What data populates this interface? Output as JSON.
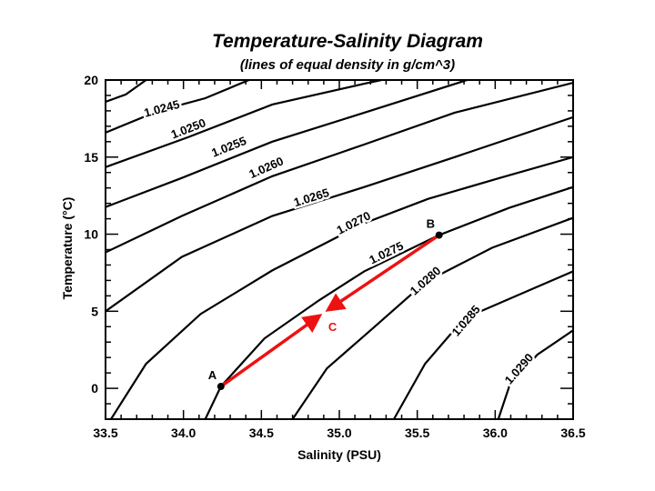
{
  "chart_data": {
    "type": "line",
    "title": "Temperature-Salinity Diagram",
    "subtitle": "(lines of equal density in g/cm^3)",
    "xlabel": "Salinity (PSU)",
    "ylabel": "Temperature (°C)",
    "xlim": [
      33.5,
      36.5
    ],
    "ylim": [
      -2,
      20
    ],
    "x_ticks": [
      "33.5",
      "34.0",
      "34.5",
      "35.0",
      "35.5",
      "36.0",
      "36.5"
    ],
    "x_tick_values": [
      33.5,
      34.0,
      34.5,
      35.0,
      35.5,
      36.0,
      36.5
    ],
    "x_minor_step": 0.1,
    "y_ticks": [
      "0",
      "5",
      "10",
      "15",
      "20"
    ],
    "y_tick_values": [
      0,
      5,
      10,
      15,
      20
    ],
    "y_minor_step": 1,
    "grid": false,
    "contours": [
      {
        "label": "",
        "level": 1.024,
        "S": [
          33.5,
          33.63,
          33.76
        ],
        "T": [
          18.59,
          19.06,
          20.0
        ]
      },
      {
        "label": "1.0245",
        "level": 1.0245,
        "label_at": [
          33.86,
          18.18
        ],
        "S": [
          33.5,
          33.84,
          34.14,
          34.42
        ],
        "T": [
          16.59,
          18.0,
          18.82,
          20.0
        ]
      },
      {
        "label": "1.0250",
        "level": 1.025,
        "label_at": [
          34.03,
          16.88
        ],
        "S": [
          33.5,
          34.03,
          34.57,
          35.16,
          35.27
        ],
        "T": [
          14.35,
          16.29,
          18.41,
          19.76,
          20.0
        ]
      },
      {
        "label": "1.0255",
        "level": 1.0255,
        "label_at": [
          34.29,
          15.7
        ],
        "S": [
          33.5,
          33.99,
          34.57,
          35.16,
          35.82
        ],
        "T": [
          11.76,
          13.65,
          16.0,
          17.88,
          20.0
        ]
      },
      {
        "label": "1.0260",
        "level": 1.026,
        "label_at": [
          34.53,
          14.35
        ],
        "S": [
          33.5,
          33.99,
          34.57,
          35.16,
          35.74,
          36.5
        ],
        "T": [
          8.82,
          11.18,
          13.76,
          15.82,
          17.88,
          19.82
        ]
      },
      {
        "label": "1.0265",
        "level": 1.0265,
        "label_at": [
          34.82,
          12.41
        ],
        "S": [
          33.5,
          33.99,
          34.57,
          35.16,
          35.74,
          36.5
        ],
        "T": [
          5.0,
          8.53,
          11.18,
          13.06,
          15.0,
          17.59
        ]
      },
      {
        "label": "1.0270",
        "level": 1.027,
        "label_at": [
          35.09,
          10.76
        ],
        "S": [
          33.535,
          33.76,
          34.11,
          34.57,
          35.16,
          35.57,
          36.03,
          36.5
        ],
        "T": [
          -2.0,
          1.59,
          4.82,
          7.65,
          10.71,
          12.29,
          13.65,
          15.0
        ]
      },
      {
        "label": "1.0275",
        "level": 1.0275,
        "label_at": [
          35.3,
          8.82
        ],
        "S": [
          34.14,
          34.24,
          34.52,
          34.87,
          35.16,
          35.64,
          36.09,
          36.5
        ],
        "T": [
          -2.0,
          0.12,
          3.24,
          5.71,
          7.59,
          9.94,
          11.71,
          13.06
        ]
      },
      {
        "label": "1.0280",
        "level": 1.028,
        "label_at": [
          35.55,
          7.0
        ],
        "S": [
          34.7,
          34.92,
          35.22,
          35.55,
          35.98,
          36.5
        ],
        "T": [
          -2.0,
          1.29,
          3.94,
          6.88,
          9.12,
          11.06
        ]
      },
      {
        "label": "1.0285",
        "level": 1.0285,
        "label_at": [
          35.81,
          4.41
        ],
        "S": [
          35.35,
          35.55,
          35.8,
          36.23,
          36.5
        ],
        "T": [
          -2.0,
          1.59,
          4.53,
          6.41,
          7.59
        ]
      },
      {
        "label": "1.0290",
        "level": 1.029,
        "label_at": [
          36.15,
          1.29
        ],
        "S": [
          36.02,
          36.09,
          36.27,
          36.5
        ],
        "T": [
          -2.0,
          0.12,
          2.18,
          3.76
        ]
      }
    ],
    "points": [
      {
        "label": "A",
        "S": 34.24,
        "T": 0.12
      },
      {
        "label": "B",
        "S": 35.64,
        "T": 9.94
      }
    ],
    "mix_point": {
      "label": "C",
      "S": 34.9,
      "T": 4.9
    },
    "arrows": [
      {
        "from": "A",
        "to": "C"
      },
      {
        "from": "B",
        "to": "C"
      }
    ],
    "colors": {
      "contour": "#000000",
      "arrow": "#ee1111",
      "point": "#000000"
    }
  }
}
